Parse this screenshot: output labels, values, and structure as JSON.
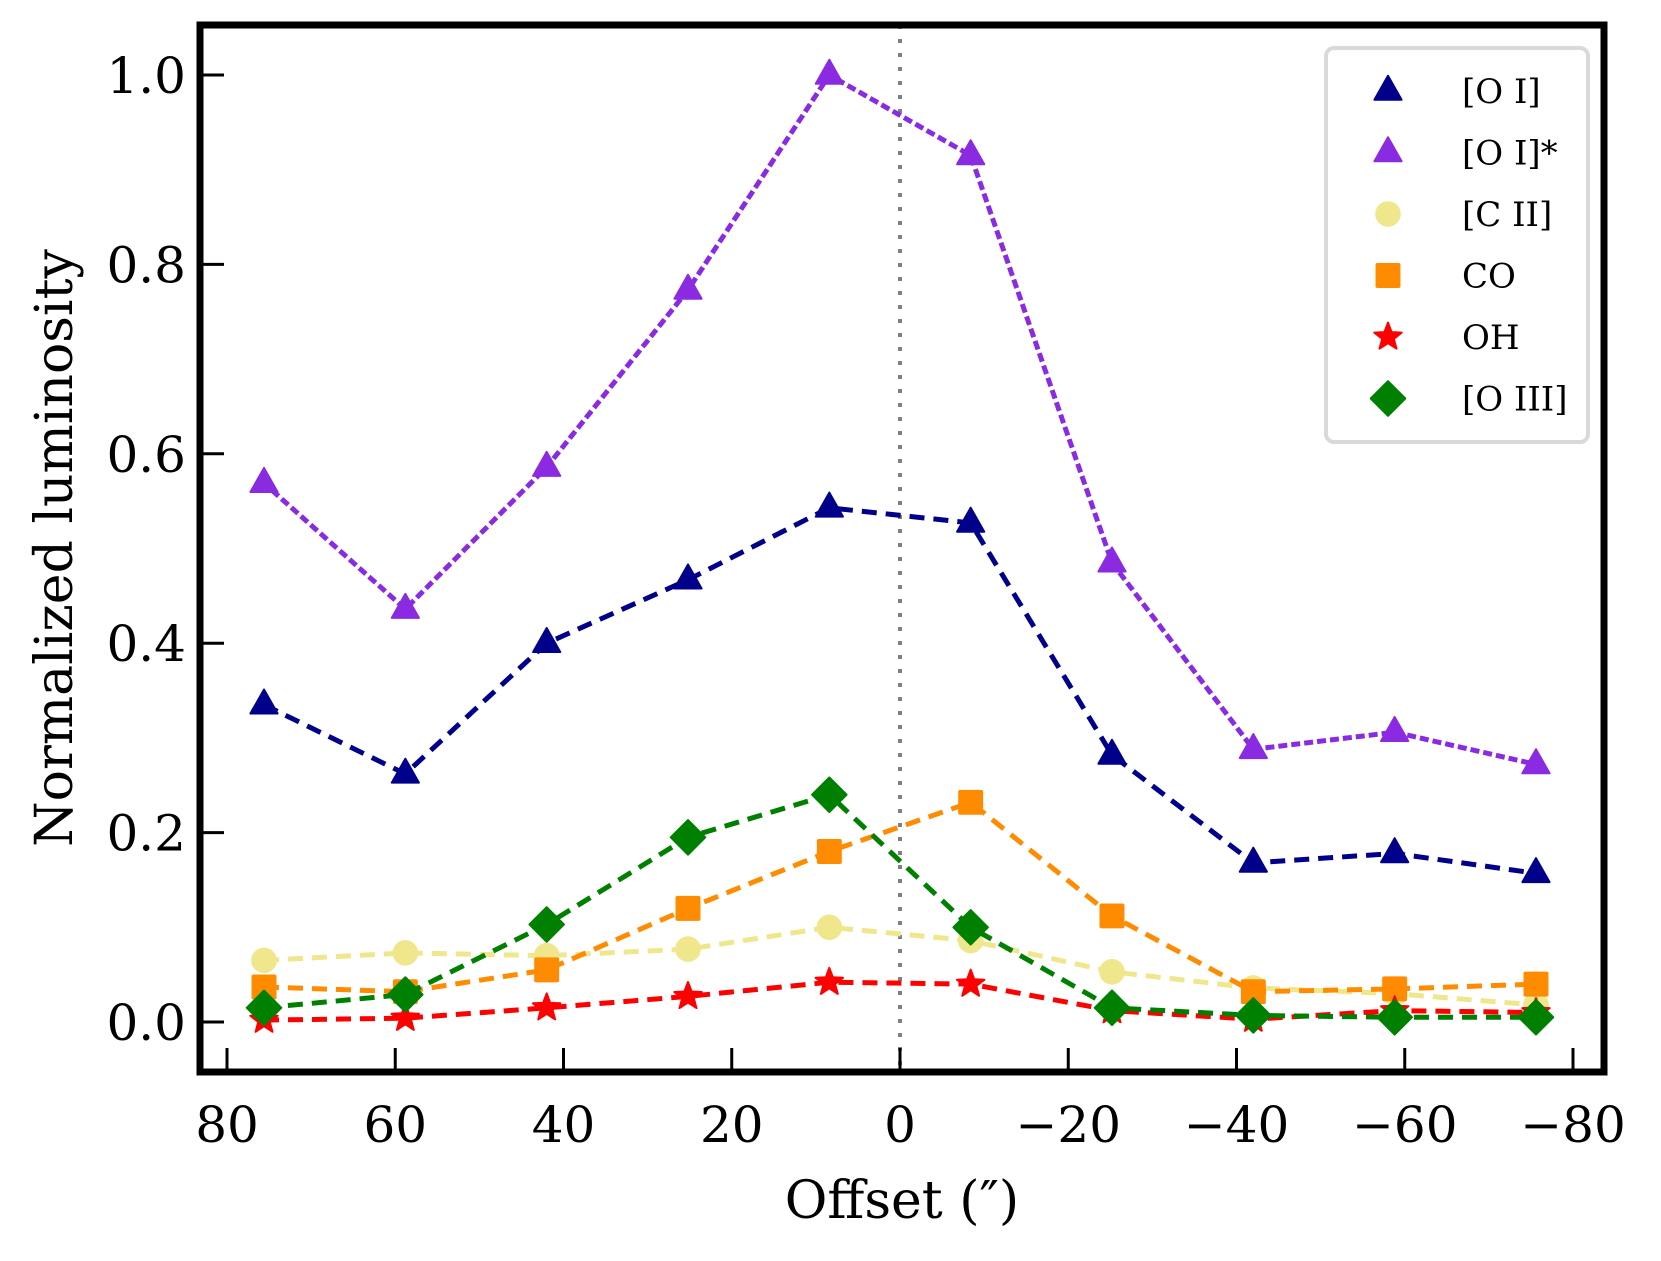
{
  "chart_data": {
    "type": "line",
    "title": "",
    "xlabel": "Offset (″)",
    "ylabel": "Normalized luminosity",
    "xlim": [
      82,
      -79
    ],
    "ylim": [
      -0.05,
      1.06
    ],
    "x_inverted": true,
    "grid": false,
    "legend_position": "top-right",
    "xticks": [
      80,
      60,
      40,
      20,
      0,
      -20,
      -40,
      -60,
      -80
    ],
    "xtick_labels": [
      "80",
      "60",
      "40",
      "20",
      "0",
      "−20",
      "−40",
      "−60",
      "−80"
    ],
    "yticks": [
      0.0,
      0.2,
      0.4,
      0.6,
      0.8,
      1.0
    ],
    "ytick_labels": [
      "0.0",
      "0.2",
      "0.4",
      "0.6",
      "0.8",
      "1.0"
    ],
    "reference_line": {
      "x": 0,
      "style": "dotted",
      "color": "#808080"
    },
    "x": [
      75.6,
      58.8,
      42.0,
      25.2,
      8.4,
      -8.4,
      -25.2,
      -42.0,
      -58.8,
      -75.6
    ],
    "series": [
      {
        "name": "[O I]",
        "color": "#00008b",
        "marker": "triangle",
        "linestyle": "dashed",
        "values": [
          0.335,
          0.262,
          0.4,
          0.467,
          0.543,
          0.527,
          0.282,
          0.168,
          0.178,
          0.157
        ]
      },
      {
        "name": "[O I]*",
        "color": "#8a2be2",
        "marker": "triangle",
        "linestyle": "dotted",
        "values": [
          0.569,
          0.436,
          0.586,
          0.773,
          1.0,
          0.915,
          0.485,
          0.288,
          0.306,
          0.272
        ]
      },
      {
        "name": "[C II]",
        "color": "#f0e68c",
        "marker": "circle",
        "linestyle": "dashed",
        "values": [
          0.065,
          0.073,
          0.07,
          0.077,
          0.1,
          0.086,
          0.053,
          0.036,
          0.03,
          0.018
        ]
      },
      {
        "name": "CO",
        "color": "#ff8c00",
        "marker": "square",
        "linestyle": "dashed",
        "values": [
          0.037,
          0.032,
          0.055,
          0.12,
          0.18,
          0.232,
          0.112,
          0.032,
          0.035,
          0.04
        ]
      },
      {
        "name": "OH",
        "color": "#ff0000",
        "marker": "star",
        "linestyle": "dashed",
        "values": [
          0.002,
          0.004,
          0.015,
          0.027,
          0.042,
          0.04,
          0.012,
          0.003,
          0.012,
          0.01
        ]
      },
      {
        "name": "[O III]",
        "color": "#008000",
        "marker": "diamond",
        "linestyle": "dashed",
        "values": [
          0.015,
          0.029,
          0.103,
          0.195,
          0.24,
          0.1,
          0.015,
          0.007,
          0.005,
          0.005
        ]
      }
    ]
  }
}
